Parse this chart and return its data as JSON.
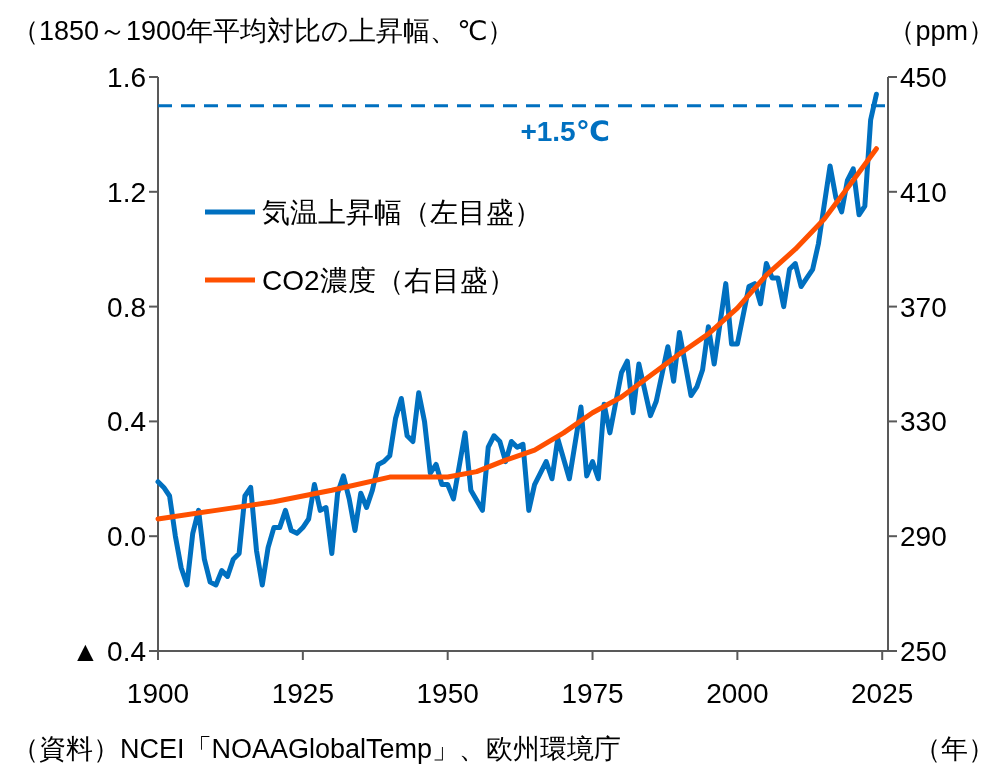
{
  "chart_data": {
    "type": "line",
    "ylabel": "（1850～1900年平均対比の上昇幅、℃）",
    "y2label": "（ppm）",
    "xlabel": "（年）",
    "annotations": [
      "（資料）NCEI「NOAAGlobalTemp」、欧州環境庁"
    ],
    "xlim": [
      1900,
      2026
    ],
    "xticks": [
      1900,
      1925,
      1950,
      1975,
      2000,
      2025
    ],
    "ylim": [
      -0.4,
      1.6
    ],
    "yticks": [
      {
        "value": -0.4,
        "label": "▲ 0.4"
      },
      {
        "value": 0,
        "label": "0.0"
      },
      0.4,
      0.8,
      1.2,
      1.6
    ],
    "y2lim": [
      250,
      450
    ],
    "y2ticks": [
      250,
      290,
      330,
      370,
      410,
      450
    ],
    "grid": false,
    "legend": "top left",
    "line_style": "solid",
    "marker": "none",
    "ref_lines": [
      {
        "axis": "y",
        "value": 1.5,
        "label": "+1.5℃",
        "color": "#0070c0",
        "line_style": "dashed"
      }
    ],
    "series": [
      {
        "name": "気温上昇幅（左目盛）",
        "color": "#0070c0",
        "x": [
          1900,
          1901,
          1902,
          1903,
          1904,
          1905,
          1906,
          1907,
          1908,
          1909,
          1910,
          1911,
          1912,
          1913,
          1914,
          1915,
          1916,
          1917,
          1918,
          1919,
          1920,
          1921,
          1922,
          1923,
          1924,
          1925,
          1926,
          1927,
          1928,
          1929,
          1930,
          1931,
          1932,
          1933,
          1934,
          1935,
          1936,
          1937,
          1938,
          1939,
          1940,
          1941,
          1942,
          1943,
          1944,
          1945,
          1946,
          1947,
          1948,
          1949,
          1950,
          1951,
          1953,
          1954,
          1956,
          1957,
          1958,
          1959,
          1960,
          1961,
          1962,
          1963,
          1964,
          1965,
          1967,
          1968,
          1969,
          1971,
          1973,
          1974,
          1975,
          1976,
          1977,
          1978,
          1980,
          1981,
          1982,
          1983,
          1985,
          1986,
          1988,
          1989,
          1990,
          1992,
          1993,
          1994,
          1995,
          1996,
          1998,
          1999,
          2000,
          2002,
          2003,
          2004,
          2005,
          2006,
          2007,
          2008,
          2009,
          2010,
          2011,
          2012,
          2013,
          2014,
          2016,
          2017,
          2018,
          2019,
          2020,
          2021,
          2022,
          2023,
          2024
        ],
        "values": [
          0.19,
          0.17,
          0.14,
          0.0,
          -0.11,
          -0.17,
          0.01,
          0.09,
          -0.08,
          -0.16,
          -0.17,
          -0.12,
          -0.14,
          -0.08,
          -0.06,
          0.14,
          0.17,
          -0.05,
          -0.17,
          -0.04,
          0.03,
          0.03,
          0.09,
          0.02,
          0.01,
          0.03,
          0.06,
          0.18,
          0.09,
          0.1,
          -0.06,
          0.15,
          0.21,
          0.13,
          0.02,
          0.15,
          0.1,
          0.16,
          0.25,
          0.26,
          0.28,
          0.41,
          0.48,
          0.35,
          0.33,
          0.5,
          0.4,
          0.22,
          0.25,
          0.18,
          0.18,
          0.13,
          0.36,
          0.16,
          0.09,
          0.31,
          0.35,
          0.33,
          0.26,
          0.33,
          0.31,
          0.32,
          0.09,
          0.18,
          0.26,
          0.2,
          0.34,
          0.2,
          0.45,
          0.21,
          0.26,
          0.2,
          0.46,
          0.36,
          0.57,
          0.61,
          0.43,
          0.6,
          0.42,
          0.47,
          0.66,
          0.54,
          0.71,
          0.49,
          0.52,
          0.58,
          0.73,
          0.6,
          0.88,
          0.67,
          0.67,
          0.87,
          0.88,
          0.81,
          0.95,
          0.9,
          0.9,
          0.8,
          0.93,
          0.95,
          0.87,
          0.9,
          0.93,
          1.02,
          1.29,
          1.18,
          1.13,
          1.24,
          1.28,
          1.12,
          1.15,
          1.45,
          1.54
        ]
      },
      {
        "name": "CO2濃度（右目盛）",
        "color": "#ff5000",
        "axis": "y2",
        "x": [
          1900,
          1910,
          1920,
          1930,
          1940,
          1950,
          1955,
          1960,
          1965,
          1970,
          1975,
          1980,
          1985,
          1990,
          1995,
          2000,
          2005,
          2010,
          2015,
          2020,
          2024
        ],
        "values": [
          296,
          299,
          302,
          306,
          310.6,
          310.6,
          312.5,
          316.5,
          320,
          326,
          333,
          338.5,
          346,
          353.5,
          360.5,
          369.5,
          381,
          390,
          400.5,
          414,
          425
        ]
      }
    ]
  }
}
